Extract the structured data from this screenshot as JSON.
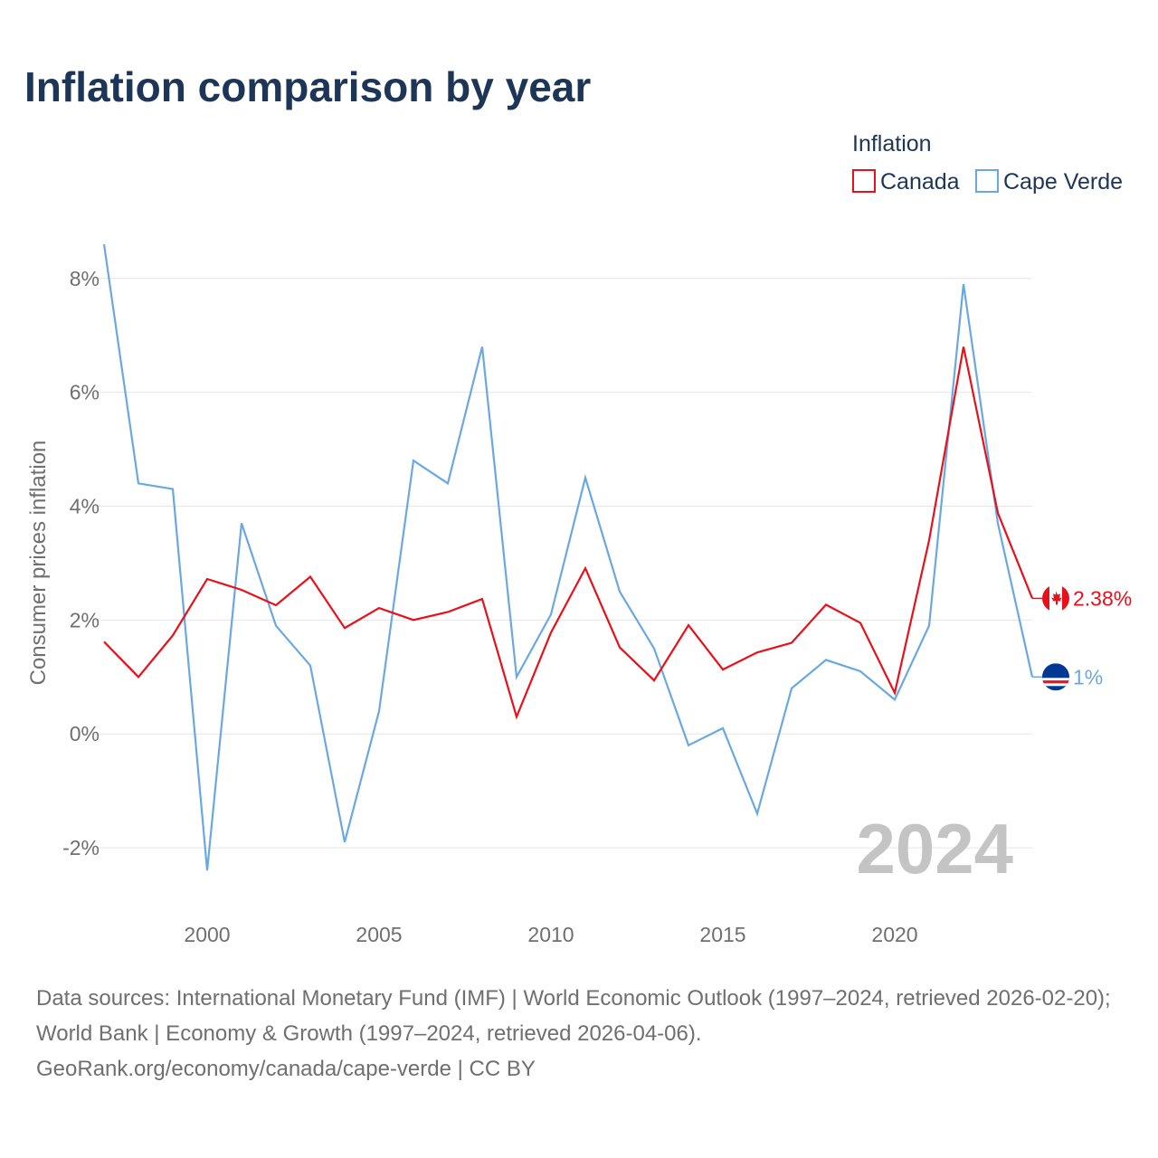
{
  "title": "Inflation comparison by year",
  "legend": {
    "title": "Inflation",
    "items": [
      {
        "label": "Canada",
        "color": "#e8101a"
      },
      {
        "label": "Cape Verde",
        "color": "#6aa8e2"
      }
    ]
  },
  "chart_data": {
    "type": "line",
    "title": "Inflation comparison by year",
    "xlabel": "",
    "ylabel": "Consumer prices inflation",
    "xlim": [
      1997,
      2024
    ],
    "ylim": [
      -3,
      8.6
    ],
    "y_ticks": [
      -2,
      0,
      2,
      4,
      6,
      8
    ],
    "y_tick_labels": [
      "-2%",
      "0%",
      "2%",
      "4%",
      "6%",
      "8%"
    ],
    "x_ticks": [
      2000,
      2005,
      2010,
      2015,
      2020
    ],
    "x_tick_labels": [
      "2000",
      "2005",
      "2010",
      "2015",
      "2020"
    ],
    "grid": true,
    "legend_position": "top-right",
    "x": [
      1997,
      1998,
      1999,
      2000,
      2001,
      2002,
      2003,
      2004,
      2005,
      2006,
      2007,
      2008,
      2009,
      2010,
      2011,
      2012,
      2013,
      2014,
      2015,
      2016,
      2017,
      2018,
      2019,
      2020,
      2021,
      2022,
      2023,
      2024
    ],
    "series": [
      {
        "name": "Canada",
        "color": "#e8101a",
        "values": [
          1.62,
          1.0,
          1.73,
          2.72,
          2.53,
          2.26,
          2.76,
          1.86,
          2.21,
          2.0,
          2.14,
          2.37,
          0.3,
          1.78,
          2.91,
          1.52,
          0.94,
          1.91,
          1.13,
          1.43,
          1.6,
          2.27,
          1.95,
          0.72,
          3.4,
          6.8,
          3.88,
          2.38
        ],
        "end_label": "2.38%"
      },
      {
        "name": "Cape Verde",
        "color": "#6aa8e2",
        "values": [
          8.6,
          4.4,
          4.3,
          -2.4,
          3.7,
          1.9,
          1.2,
          -1.9,
          0.4,
          4.8,
          4.4,
          6.8,
          1.0,
          2.1,
          4.5,
          2.5,
          1.5,
          -0.2,
          0.1,
          -1.4,
          0.8,
          1.3,
          1.1,
          0.6,
          1.9,
          7.9,
          3.7,
          1.0
        ],
        "end_label": "1%"
      }
    ],
    "annotation": "2024"
  },
  "footer": {
    "sources": "Data sources: International Monetary Fund (IMF) | World Economic Outlook (1997–2024, retrieved 2026-02-20); World Bank | Economy & Growth (1997–2024, retrieved 2026-04-06).",
    "credit": "GeoRank.org/economy/canada/cape-verde | CC BY"
  },
  "icons": {
    "canada_flag": "canada-flag-icon",
    "cape_verde_flag": "cape-verde-flag-icon"
  }
}
